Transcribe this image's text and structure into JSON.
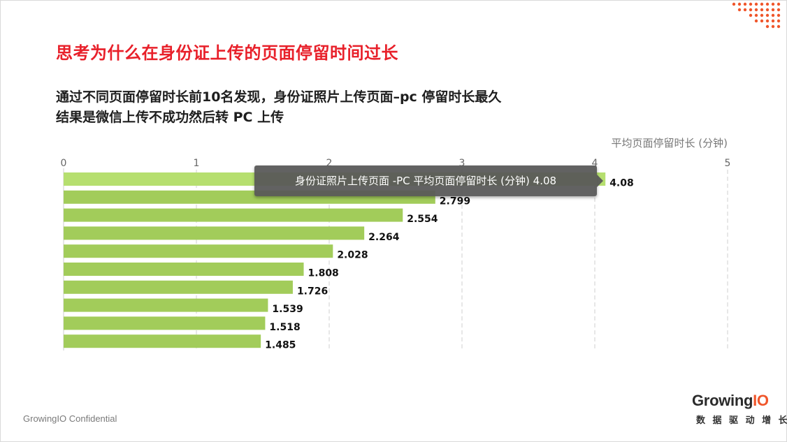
{
  "title": "思考为什么在身份证上传的页面停留时间过长",
  "subtitle_lines": [
    "通过不同页面停留时长前10名发现，身份证照片上传页面–pc 停留时长最久",
    "结果是微信上传不成功然后转 PC 上传"
  ],
  "chart_data": {
    "type": "bar",
    "orientation": "horizontal",
    "title": "",
    "xlabel": "平均页面停留时长 (分钟)",
    "ylabel": "",
    "xlim": [
      0,
      5
    ],
    "x_ticks": [
      "0",
      "1",
      "2",
      "3",
      "4",
      "5"
    ],
    "grid": "vertical dashed",
    "series": [
      {
        "values": [
          4.08,
          2.799,
          2.554,
          2.264,
          2.028,
          1.808,
          1.726,
          1.539,
          1.518,
          1.485
        ],
        "labels": [
          "4.08",
          "2.799",
          "2.554",
          "2.264",
          "2.028",
          "1.808",
          "1.726",
          "1.539",
          "1.518",
          "1.485"
        ]
      }
    ],
    "colors": {
      "bar_highlight": "#b6df6f",
      "bar": "#a2cc5a"
    },
    "tooltip": "身份证照片上传页面 -PC 平均页面停留时长 (分钟) 4.08"
  },
  "footer": {
    "confidential": "GrowingIO Confidential"
  },
  "logo": {
    "name_prefix": "Growing",
    "name_suffix": "IO",
    "tagline": "数 据 驱 动 增 长"
  },
  "colors": {
    "title_red": "#e8202a",
    "logo_orange": "#f0562b"
  }
}
